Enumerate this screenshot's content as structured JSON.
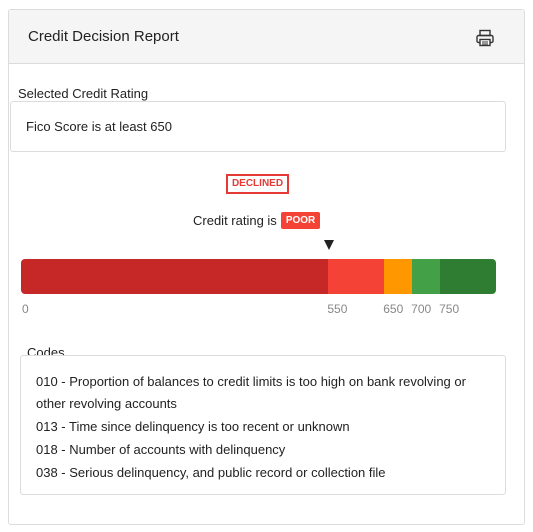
{
  "header": {
    "title": "Credit Decision Report",
    "print_icon": "printer-icon"
  },
  "selected_rating": {
    "label": "Selected Credit Rating",
    "value": "Fico Score is at least 650"
  },
  "decision": {
    "status": "DECLINED",
    "status_color": "#e53935"
  },
  "credit_rating": {
    "label": "Credit rating is",
    "badge": "POOR",
    "badge_color": "#f44336"
  },
  "scale": {
    "min": 0,
    "max": 850,
    "marker_value": 550,
    "segments": [
      {
        "from": 0,
        "to": 550,
        "color": "#c62828"
      },
      {
        "from": 550,
        "to": 650,
        "color": "#f44336"
      },
      {
        "from": 650,
        "to": 700,
        "color": "#ff9800"
      },
      {
        "from": 700,
        "to": 750,
        "color": "#43a047"
      },
      {
        "from": 750,
        "to": 850,
        "color": "#2e7d32"
      }
    ],
    "ticks": [
      "0",
      "550",
      "650",
      "700",
      "750"
    ]
  },
  "codes": {
    "label": "Codes",
    "items": [
      "010 - Proportion of balances to credit limits is too high on bank revolving or other revolving accounts",
      "013 - Time since delinquency is too recent or unknown",
      "018 - Number of accounts with delinquency",
      "038 - Serious delinquency, and public record or collection file"
    ]
  }
}
